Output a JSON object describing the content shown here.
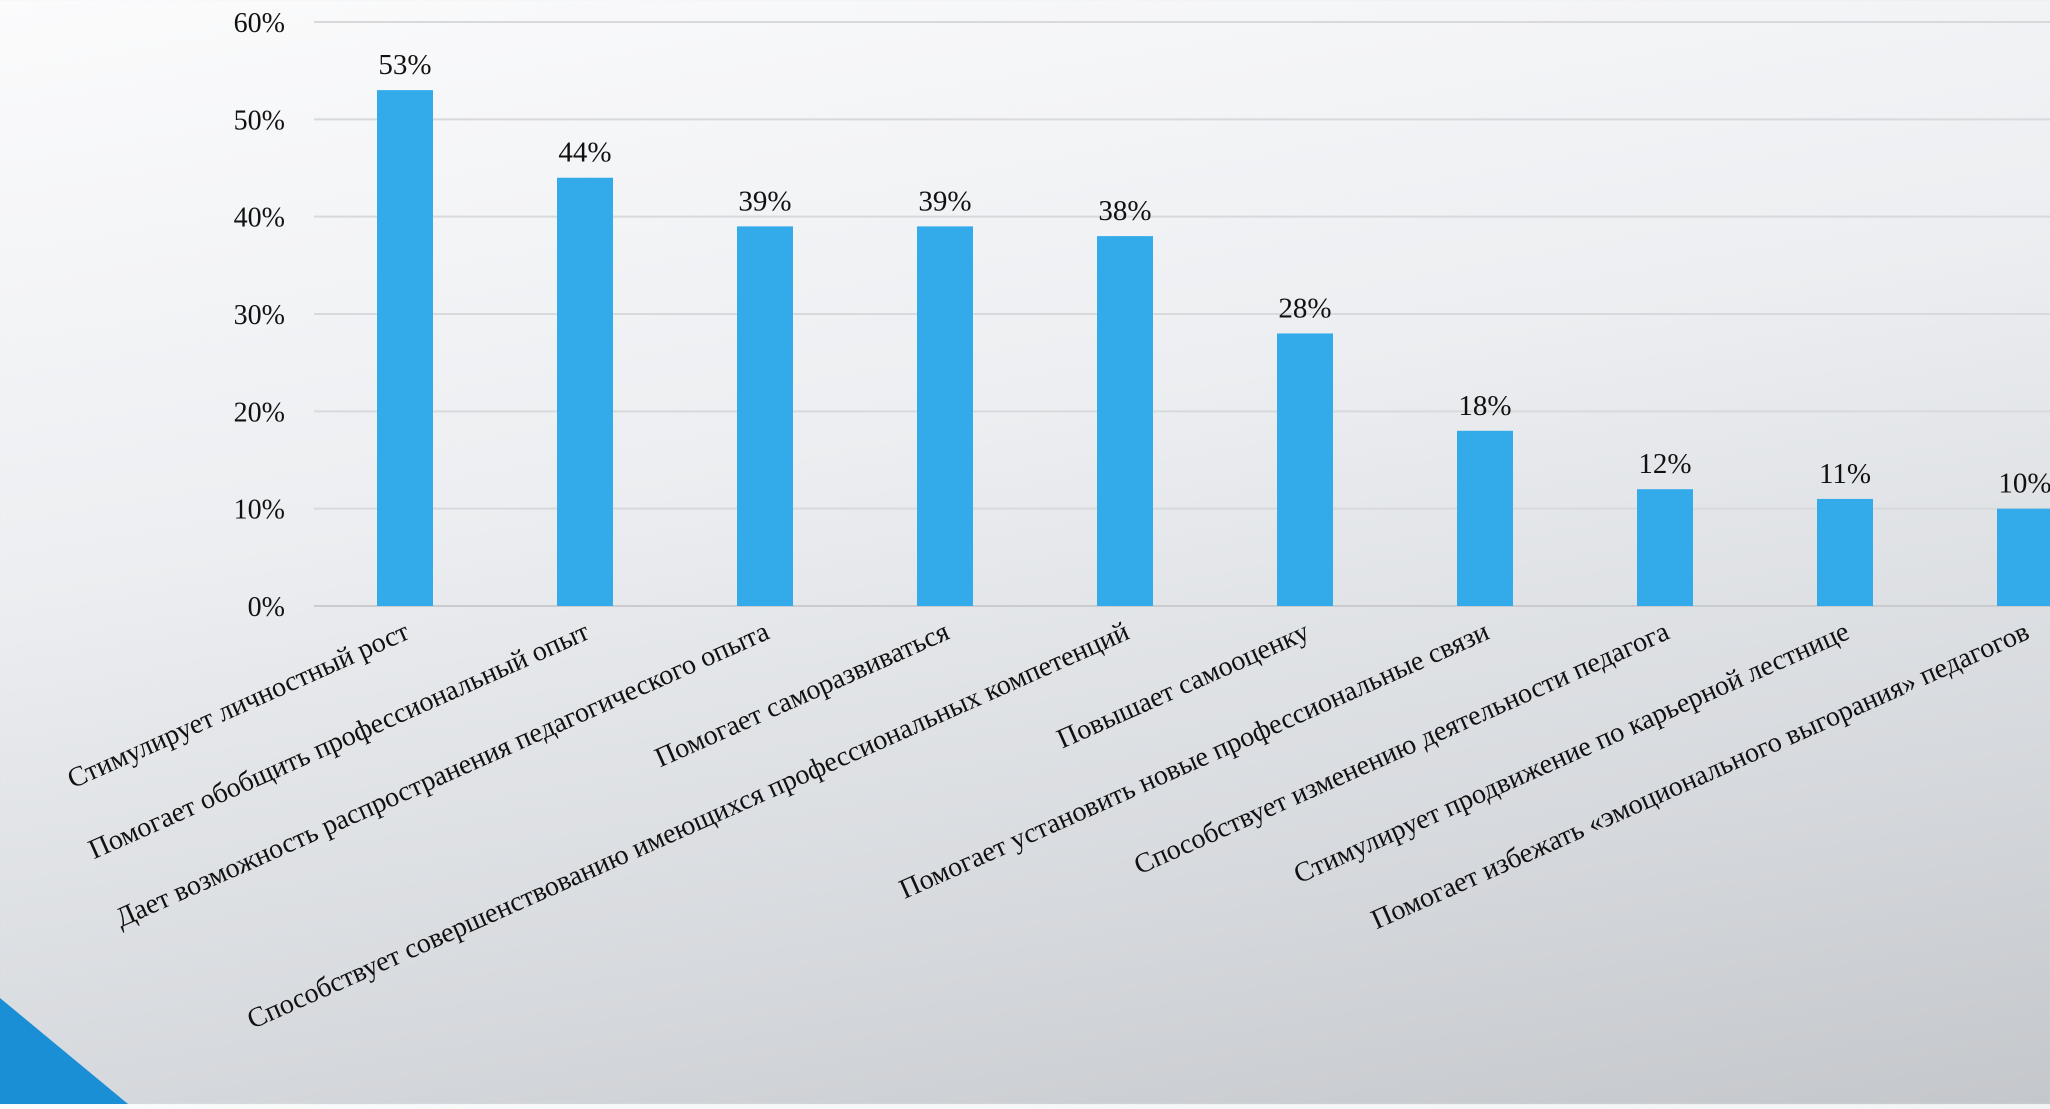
{
  "chart_data": {
    "type": "bar",
    "categories": [
      "Стимулирует  личностный рост",
      "Помогает обобщить профессиональный опыт",
      "Дает возможность распространения педагогического опыта",
      "Помогает саморазвиваться",
      "Способствует совершенствованию имеющихся профессиональных компетенций",
      "Повышает самооценку",
      "Помогает установить новые профессиональные связи",
      "Способствует изменению деятельности педагога",
      "Стимулирует  продвижение по карьерной лестнице",
      "Помогает избежать «эмоционального выгорания» педагогов"
    ],
    "values": [
      53,
      44,
      39,
      39,
      38,
      28,
      18,
      12,
      11,
      10
    ],
    "value_labels": [
      "53%",
      "44%",
      "39%",
      "39%",
      "38%",
      "28%",
      "18%",
      "12%",
      "11%",
      "10%"
    ],
    "ylim": [
      0,
      60
    ],
    "yticks": [
      0,
      10,
      20,
      30,
      40,
      50,
      60
    ],
    "ytick_labels": [
      "0%",
      "10%",
      "20%",
      "30%",
      "40%",
      "50%",
      "60%"
    ],
    "grid": true,
    "title": "",
    "xlabel": "",
    "ylabel": "",
    "bar_color": "#33aaea",
    "corner_accent_color": "#1a8fd6"
  }
}
